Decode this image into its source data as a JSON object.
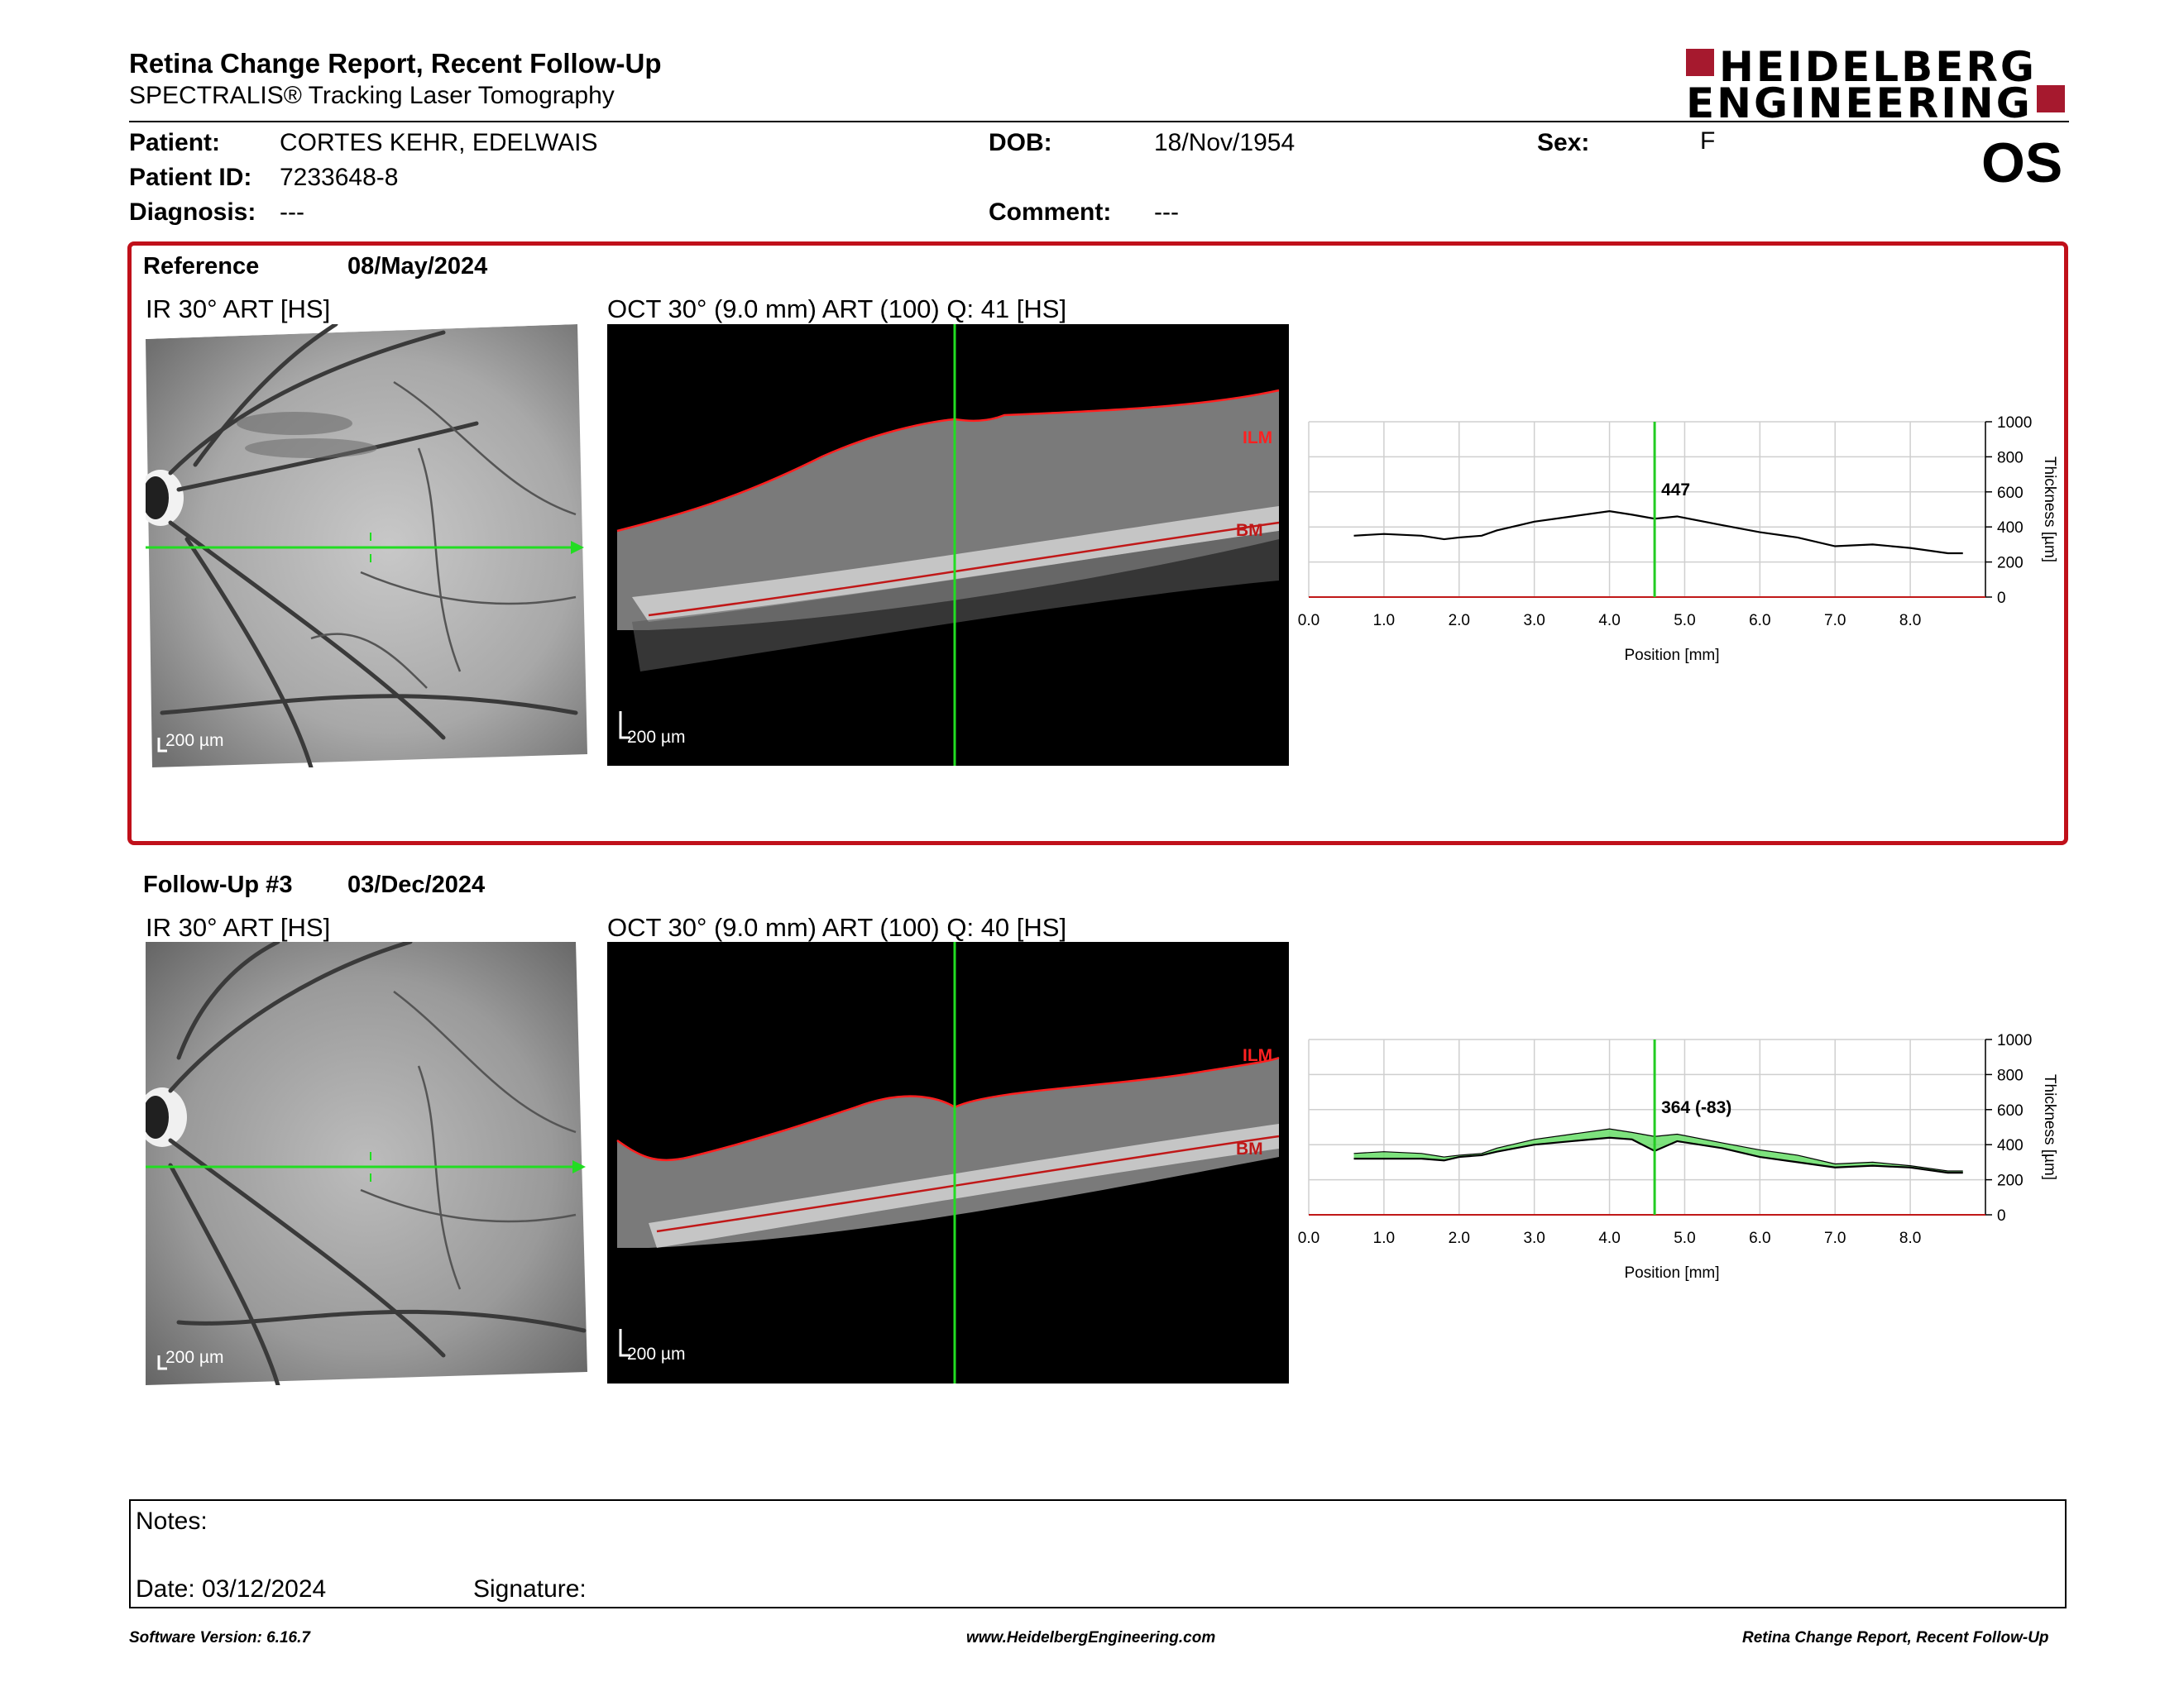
{
  "header": {
    "title": "Retina Change Report, Recent Follow-Up",
    "subtitle": "SPECTRALIS® Tracking Laser Tomography",
    "logo_line1": "HEIDELBERG",
    "logo_line2": "ENGINEERING",
    "eye": "OS"
  },
  "patient": {
    "patient_label": "Patient:",
    "patient_value": "CORTES KEHR, EDELWAIS",
    "id_label": "Patient ID:",
    "id_value": "7233648-8",
    "diagnosis_label": "Diagnosis:",
    "diagnosis_value": "---",
    "dob_label": "DOB:",
    "dob_value": "18/Nov/1954",
    "comment_label": "Comment:",
    "comment_value": "---",
    "sex_label": "Sex:",
    "sex_value": "F"
  },
  "reference": {
    "label": "Reference",
    "date": "08/May/2024",
    "ir_title": "IR 30° ART [HS]",
    "oct_title": "OCT 30° (9.0 mm) ART (100) Q: 41 [HS]",
    "scale": "200 µm",
    "ilm": "ILM",
    "bm": "BM"
  },
  "followup": {
    "label": "Follow-Up #3",
    "date": "03/Dec/2024",
    "ir_title": "IR 30° ART [HS]",
    "oct_title": "OCT 30° (9.0 mm) ART (100) Q: 40 [HS]",
    "scale": "200 µm",
    "ilm": "ILM",
    "bm": "BM"
  },
  "chart_data": [
    {
      "type": "line",
      "xlabel": "Position [mm]",
      "ylabel": "Thickness [µm]",
      "xlim": [
        0,
        9.0
      ],
      "ylim": [
        0,
        1000
      ],
      "xticks": [
        "0.0",
        "1.0",
        "2.0",
        "3.0",
        "4.0",
        "5.0",
        "6.0",
        "7.0",
        "8.0"
      ],
      "yticks": [
        "0",
        "200",
        "400",
        "600",
        "800",
        "1000"
      ],
      "marker_x": 4.6,
      "marker_label": "447",
      "series": [
        {
          "x": [
            0.6,
            1.0,
            1.5,
            1.8,
            2.0,
            2.3,
            2.5,
            3.0,
            3.5,
            4.0,
            4.3,
            4.6,
            4.9,
            5.5,
            6.0,
            6.5,
            7.0,
            7.5,
            8.0,
            8.5,
            8.7
          ],
          "values": [
            350,
            360,
            350,
            330,
            340,
            350,
            380,
            430,
            460,
            490,
            470,
            447,
            460,
            410,
            370,
            340,
            290,
            300,
            280,
            250,
            250
          ]
        }
      ]
    },
    {
      "type": "line",
      "xlabel": "Position [mm]",
      "ylabel": "Thickness [µm]",
      "xlim": [
        0,
        9.0
      ],
      "ylim": [
        0,
        1000
      ],
      "xticks": [
        "0.0",
        "1.0",
        "2.0",
        "3.0",
        "4.0",
        "5.0",
        "6.0",
        "7.0",
        "8.0"
      ],
      "yticks": [
        "0",
        "200",
        "400",
        "600",
        "800",
        "1000"
      ],
      "marker_x": 4.6,
      "marker_label": "364 (-83)",
      "series": [
        {
          "name": "reference",
          "x": [
            0.6,
            1.0,
            1.5,
            1.8,
            2.0,
            2.3,
            2.5,
            3.0,
            3.5,
            4.0,
            4.3,
            4.6,
            4.9,
            5.5,
            6.0,
            6.5,
            7.0,
            7.5,
            8.0,
            8.5,
            8.7
          ],
          "values": [
            350,
            360,
            350,
            330,
            340,
            350,
            380,
            430,
            460,
            490,
            470,
            447,
            460,
            410,
            370,
            340,
            290,
            300,
            280,
            250,
            250
          ]
        },
        {
          "name": "follow-up",
          "x": [
            0.6,
            1.0,
            1.5,
            1.8,
            2.0,
            2.3,
            2.5,
            3.0,
            3.5,
            4.0,
            4.3,
            4.6,
            4.9,
            5.5,
            6.0,
            6.5,
            7.0,
            7.5,
            8.0,
            8.5,
            8.7
          ],
          "values": [
            320,
            320,
            320,
            310,
            330,
            340,
            360,
            400,
            420,
            440,
            430,
            364,
            420,
            380,
            330,
            300,
            270,
            280,
            270,
            240,
            240
          ]
        }
      ]
    }
  ],
  "notes": {
    "label": "Notes:",
    "date_label": "Date: 03/12/2024",
    "signature_label": "Signature:"
  },
  "footer": {
    "software": "Software Version: 6.16.7",
    "website": "www.HeidelbergEngineering.com",
    "report": "Retina Change Report, Recent Follow-Up"
  },
  "colors": {
    "accent": "#a6192e",
    "frame": "#c0101a",
    "marker": "#22cc22",
    "change": "#66dd66"
  }
}
